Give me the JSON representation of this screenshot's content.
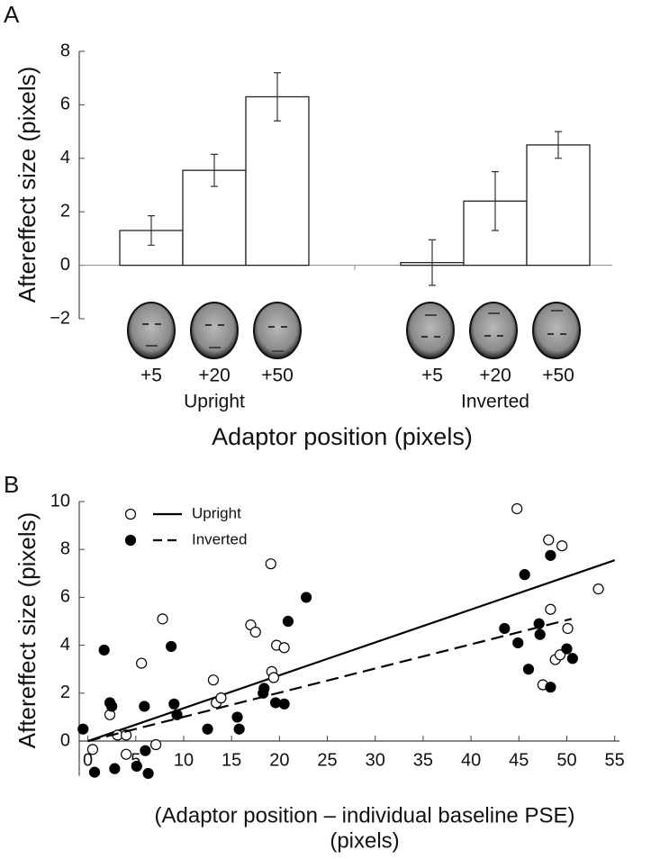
{
  "chart_data": [
    {
      "type": "bar",
      "panel_label": "A",
      "ylabel": "Aftereffect size (pixels)",
      "xlabel": "Adaptor position (pixels)",
      "ylim": [
        -2,
        8
      ],
      "yticks": [
        {
          "value": -2,
          "label": "−2"
        },
        0,
        2,
        4,
        6,
        8
      ],
      "color": "#ffffff",
      "groups": [
        {
          "name": "Upright",
          "categories": [
            "+5",
            "+20",
            "+50"
          ],
          "values": [
            1.3,
            3.55,
            6.3
          ],
          "errors": [
            0.55,
            0.6,
            0.9
          ]
        },
        {
          "name": "Inverted",
          "categories": [
            "+5",
            "+20",
            "+50"
          ],
          "values": [
            0.1,
            2.4,
            4.5
          ],
          "errors": [
            0.85,
            1.1,
            0.5
          ]
        }
      ]
    },
    {
      "type": "scatter",
      "panel_label": "B",
      "ylabel": "Aftereffect size (pixels)",
      "xlabel": [
        "(Adaptor position – individual baseline PSE)",
        "(pixels)"
      ],
      "xlim": [
        -0.9,
        55.5
      ],
      "ylim": [
        -1.6,
        10
      ],
      "xticks": [
        0,
        5,
        10,
        15,
        20,
        25,
        30,
        35,
        40,
        45,
        50,
        55
      ],
      "yticks": [
        0,
        2,
        4,
        6,
        8,
        10
      ],
      "legend": "top-left",
      "series": [
        {
          "name": "Upright",
          "color": "#000000",
          "markerfacecolor": "#ffffff",
          "linestyle": "solid",
          "x": [
            0.5,
            2.3,
            3.1,
            4.0,
            4.0,
            5.6,
            7.1,
            7.8,
            13.1,
            13.4,
            13.9,
            17.0,
            17.5,
            19.1,
            19.2,
            19.4,
            19.7,
            20.5,
            44.8,
            48.1,
            49.5,
            48.3,
            50.1,
            47.5,
            48.8,
            49.3,
            53.3
          ],
          "values": [
            -0.35,
            1.1,
            0.25,
            0.25,
            -0.55,
            3.25,
            -0.15,
            5.1,
            2.55,
            1.6,
            1.8,
            4.85,
            4.55,
            7.4,
            2.9,
            2.65,
            4.0,
            3.9,
            9.7,
            8.4,
            8.15,
            5.5,
            4.7,
            2.35,
            3.4,
            3.6,
            6.35
          ],
          "line_x": [
            0,
            55
          ],
          "line_y": [
            0,
            7.55
          ]
        },
        {
          "name": "Inverted",
          "color": "#000000",
          "markerfacecolor": "#000000",
          "linestyle": "dashed",
          "x": [
            -0.5,
            0.7,
            1.7,
            2.3,
            2.5,
            2.8,
            5.1,
            5.9,
            6.0,
            6.3,
            8.7,
            9.0,
            9.3,
            12.5,
            15.6,
            15.8,
            18.3,
            18.4,
            19.6,
            20.5,
            20.9,
            22.8,
            43.5,
            44.9,
            45.6,
            46.0,
            47.1,
            47.2,
            48.3,
            48.3,
            50.0,
            50.6
          ],
          "values": [
            0.5,
            -1.3,
            3.8,
            1.6,
            1.45,
            -1.15,
            -1.05,
            1.45,
            -0.4,
            -1.35,
            3.95,
            1.55,
            1.1,
            0.5,
            1.0,
            0.5,
            2.0,
            2.2,
            1.6,
            1.55,
            5.0,
            6.0,
            4.7,
            4.1,
            6.95,
            3.0,
            4.9,
            4.45,
            7.75,
            2.25,
            3.85,
            3.45
          ],
          "line_x": [
            0,
            50.5
          ],
          "line_y": [
            0,
            5.1
          ]
        }
      ]
    }
  ]
}
